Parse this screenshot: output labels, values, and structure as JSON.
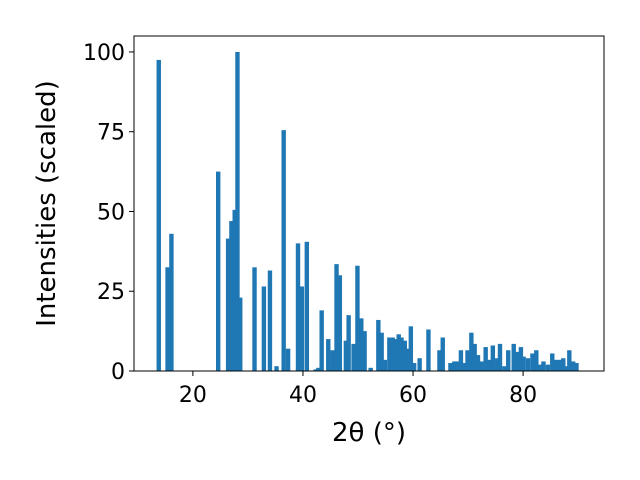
{
  "chart_data": {
    "type": "bar",
    "title": "",
    "xlabel": "2θ (°)",
    "ylabel": "Intensities (scaled)",
    "xlim": [
      9.3,
      94.7
    ],
    "ylim": [
      0,
      105
    ],
    "xticks": [
      20,
      40,
      60,
      80
    ],
    "yticks": [
      0,
      25,
      50,
      75,
      100
    ],
    "grid": false,
    "bar_color": "#1f77b4",
    "bar_width": 0.8,
    "x": [
      13.8,
      15.4,
      16.1,
      24.6,
      26.4,
      27.0,
      27.6,
      28.1,
      28.6,
      31.2,
      32.9,
      34.0,
      35.2,
      36.5,
      37.3,
      39.1,
      39.8,
      40.7,
      42.3,
      42.8,
      43.4,
      44.6,
      45.4,
      46.1,
      46.7,
      47.8,
      48.3,
      49.2,
      49.9,
      50.6,
      51.2,
      52.3,
      53.7,
      54.3,
      54.9,
      55.7,
      56.3,
      56.8,
      57.4,
      57.9,
      58.5,
      59.0,
      59.6,
      60.2,
      61.2,
      62.8,
      64.8,
      65.4,
      66.8,
      67.5,
      68.1,
      68.7,
      69.3,
      69.9,
      70.6,
      71.2,
      71.8,
      72.4,
      73.2,
      73.9,
      74.5,
      75.3,
      75.8,
      76.6,
      77.3,
      78.3,
      78.9,
      79.6,
      80.1,
      80.9,
      81.7,
      82.4,
      83.2,
      83.7,
      84.5,
      85.3,
      85.9,
      86.6,
      87.3,
      87.8,
      88.4,
      89.1,
      89.7
    ],
    "values": [
      97.5,
      32.5,
      43.0,
      62.5,
      41.5,
      47.0,
      50.5,
      100.0,
      23.0,
      32.5,
      26.5,
      31.5,
      1.5,
      75.5,
      7.0,
      40.0,
      26.5,
      40.5,
      0.5,
      1.0,
      19.0,
      10.0,
      6.5,
      33.5,
      30.0,
      9.5,
      17.5,
      8.5,
      33.0,
      16.5,
      12.5,
      1.0,
      16.0,
      12.0,
      3.5,
      10.5,
      10.5,
      10.0,
      11.5,
      10.5,
      9.5,
      7.0,
      14.0,
      2.5,
      4.0,
      13.0,
      6.5,
      10.5,
      2.5,
      3.0,
      3.0,
      6.5,
      2.5,
      6.5,
      12.0,
      8.5,
      5.0,
      3.0,
      7.5,
      3.5,
      8.0,
      4.0,
      8.5,
      1.5,
      6.5,
      8.5,
      6.0,
      7.5,
      4.5,
      4.0,
      5.5,
      6.5,
      2.0,
      3.0,
      2.0,
      5.5,
      3.5,
      3.5,
      4.0,
      1.5,
      6.5,
      3.0,
      2.5
    ]
  }
}
